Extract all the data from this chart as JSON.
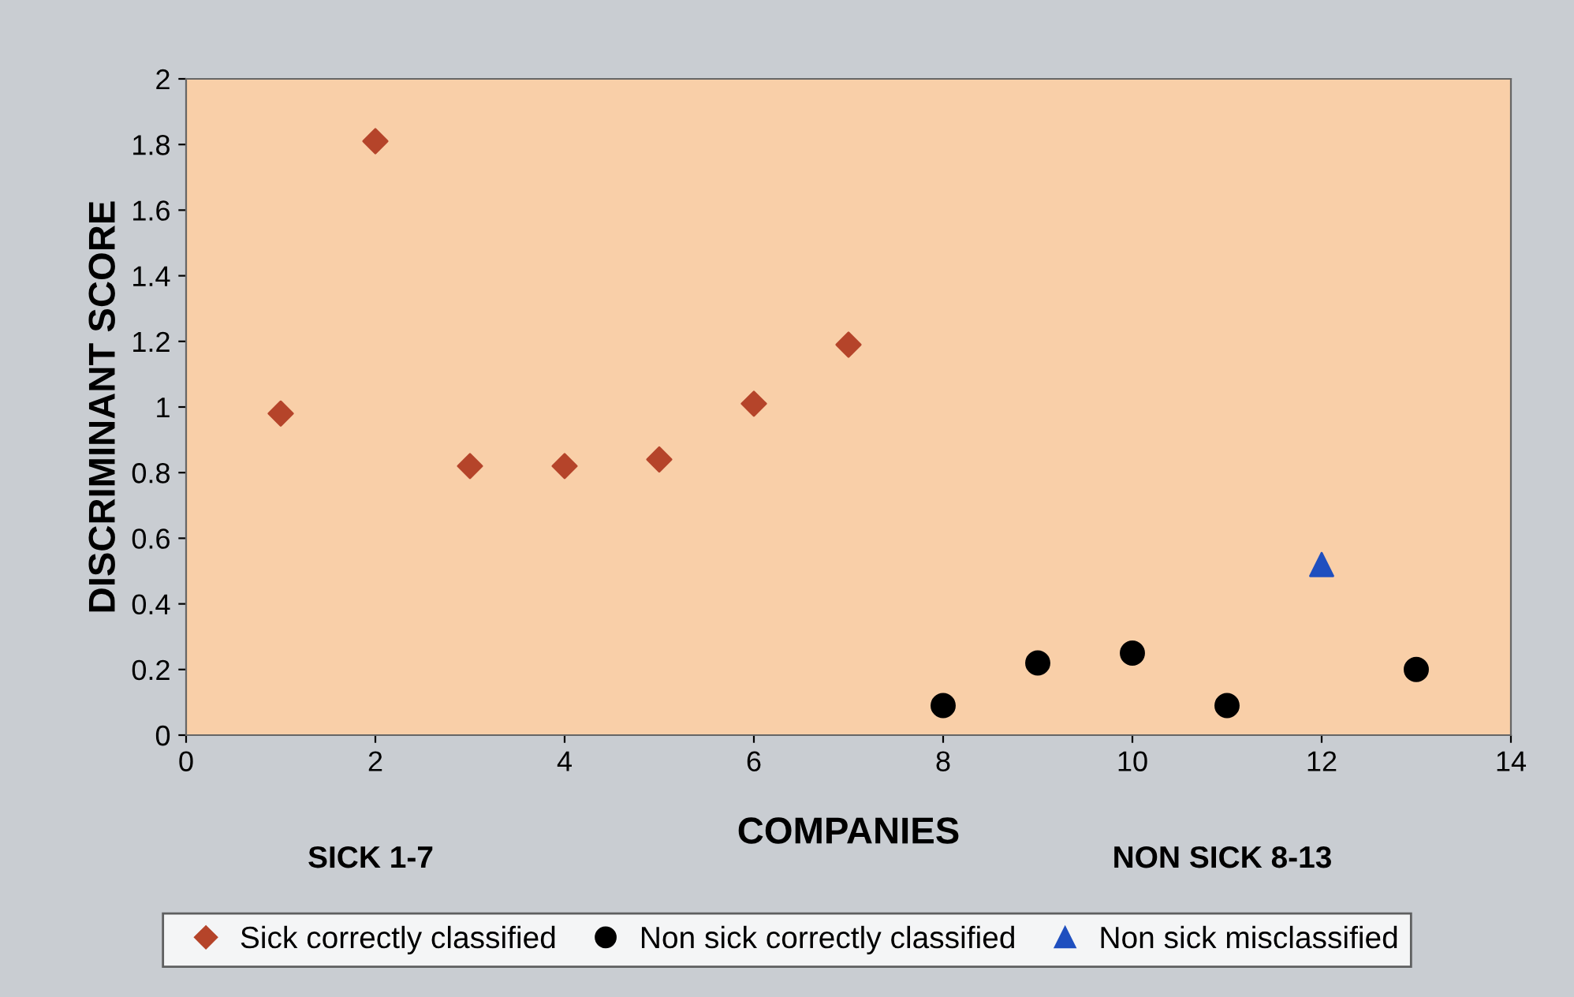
{
  "chart_data": {
    "type": "scatter",
    "xlabel": "COMPANIES",
    "ylabel": "DISCRIMINANT SCORE",
    "annotations": [
      "SICK 1-7",
      "NON SICK 8-13"
    ],
    "series": [
      {
        "name": "Sick correctly classified",
        "color": "#b5442a",
        "marker": "diamond",
        "x": [
          1,
          2,
          3,
          4,
          5,
          6,
          7
        ],
        "values": [
          0.98,
          1.81,
          0.82,
          0.82,
          0.84,
          1.01,
          1.19
        ]
      },
      {
        "name": "Non sick correctly classified",
        "color": "#000000",
        "marker": "circle",
        "x": [
          8,
          9,
          10,
          11,
          13
        ],
        "values": [
          0.09,
          0.22,
          0.25,
          0.09,
          0.2
        ]
      },
      {
        "name": "Non sick misclassified",
        "color": "#1f4fbf",
        "marker": "triangle",
        "x": [
          12
        ],
        "values": [
          0.52
        ]
      }
    ],
    "xlim": [
      0,
      14
    ],
    "xticks": [
      0,
      2,
      4,
      6,
      8,
      10,
      12,
      14
    ],
    "ylim": [
      0,
      2
    ],
    "yticks": [
      0,
      0.2,
      0.4,
      0.6,
      0.8,
      1,
      1.2,
      1.4,
      1.6,
      1.8,
      2
    ],
    "grid": false,
    "legend": "bottom"
  }
}
